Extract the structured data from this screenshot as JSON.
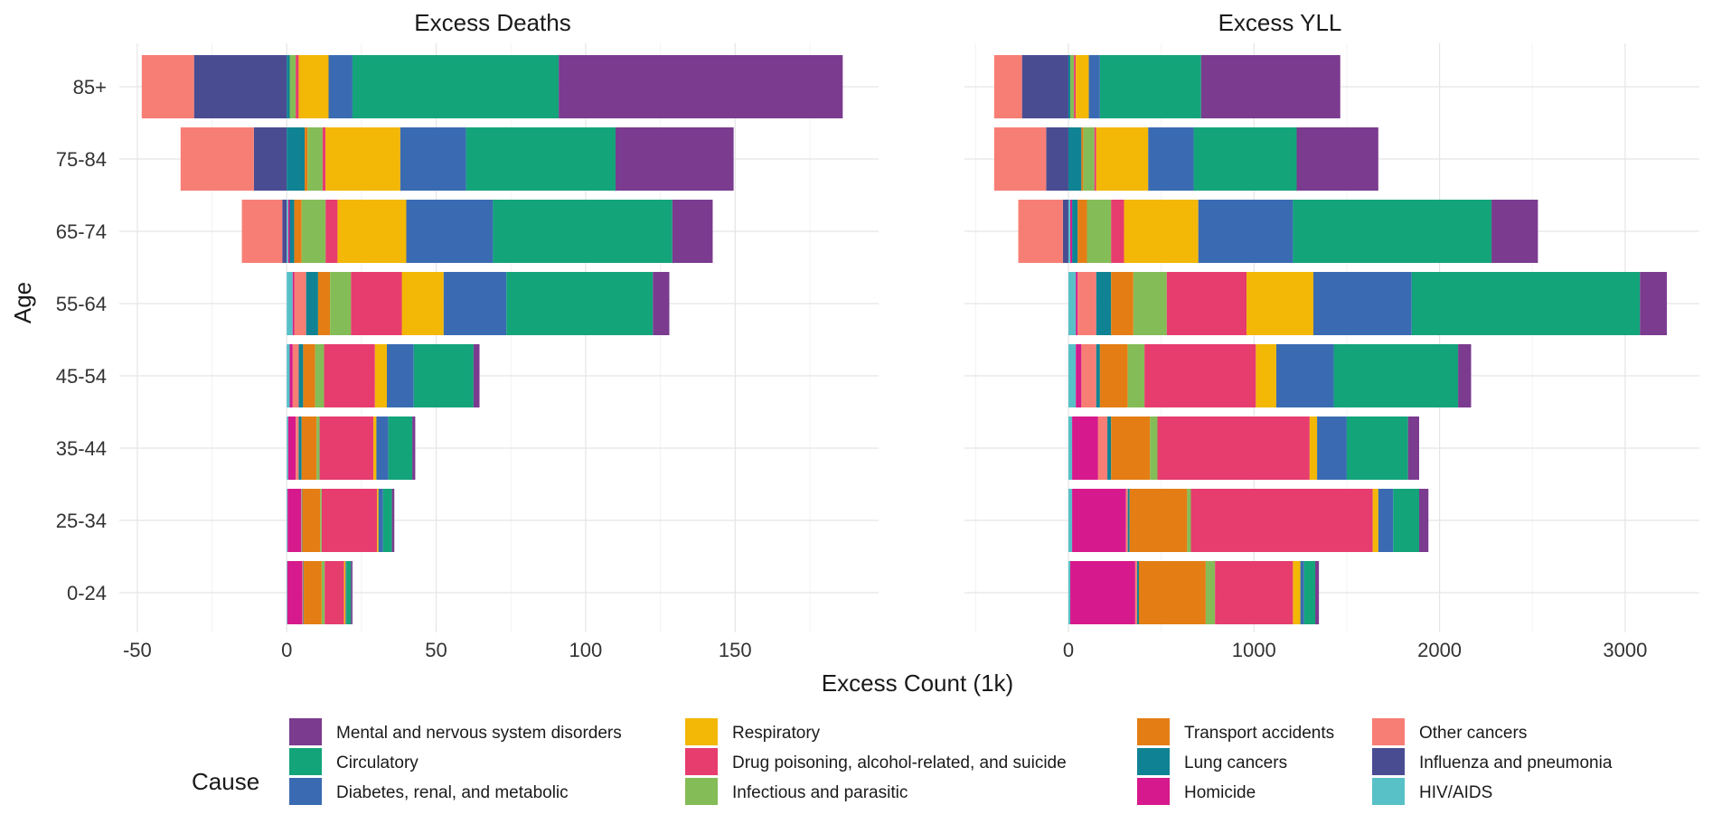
{
  "chart_data": {
    "type": "bar",
    "orientation": "horizontal",
    "stacked": true,
    "diverging": true,
    "ylabel": "Age",
    "xlabel": "Excess Count (1k)",
    "legend_title": "Cause",
    "legend_position": "bottom",
    "grid": true,
    "categories": [
      "85+",
      "75-84",
      "65-74",
      "55-64",
      "45-54",
      "35-44",
      "25-34",
      "0-24"
    ],
    "causes": [
      {
        "name": "Mental and nervous system disorders",
        "color": "#7b3b8f"
      },
      {
        "name": "Circulatory",
        "color": "#13a47a"
      },
      {
        "name": "Diabetes, renal, and metabolic",
        "color": "#3a6bb2"
      },
      {
        "name": "Respiratory",
        "color": "#f3b706"
      },
      {
        "name": "Drug poisoning, alcohol-related, and suicide",
        "color": "#e63c6e"
      },
      {
        "name": "Infectious and parasitic",
        "color": "#84bd57"
      },
      {
        "name": "Transport accidents",
        "color": "#e47e14"
      },
      {
        "name": "Lung cancers",
        "color": "#0f8394"
      },
      {
        "name": "Homicide",
        "color": "#d6198c"
      },
      {
        "name": "Other cancers",
        "color": "#f77e74"
      },
      {
        "name": "Influenza and pneumonia",
        "color": "#4a4c92"
      },
      {
        "name": "HIV/AIDS",
        "color": "#58c1c8"
      }
    ],
    "panels": [
      {
        "title": "Excess Deaths",
        "xlim": [
          -56,
          198
        ],
        "ticks": [
          -50,
          0,
          50,
          100,
          150
        ],
        "tick_labels": [
          "-50",
          "0",
          "50",
          "100",
          "150"
        ],
        "values": {
          "85+": {
            "Other cancers": -17.5,
            "Influenza and pneumonia": -31,
            "HIV/AIDS": 0,
            "Homicide": 0,
            "Lung cancers": 1,
            "Transport accidents": 0,
            "Infectious and parasitic": 2,
            "Drug poisoning, alcohol-related, and suicide": 1,
            "Respiratory": 10,
            "Diabetes, renal, and metabolic": 8,
            "Circulatory": 69,
            "Mental and nervous system disorders": 95
          },
          "75-84": {
            "Other cancers": -24.5,
            "Influenza and pneumonia": -11,
            "HIV/AIDS": 0,
            "Homicide": 0,
            "Lung cancers": 6,
            "Transport accidents": 1,
            "Infectious and parasitic": 5,
            "Drug poisoning, alcohol-related, and suicide": 1,
            "Respiratory": 25,
            "Diabetes, renal, and metabolic": 22,
            "Circulatory": 50,
            "Mental and nervous system disorders": 39.5
          },
          "65-74": {
            "Other cancers": -13.5,
            "Influenza and pneumonia": -1.5,
            "Lung cancers": 1.5,
            "HIV/AIDS": 0.5,
            "Homicide": 0.5,
            "Transport accidents": 2.5,
            "Infectious and parasitic": 8,
            "Drug poisoning, alcohol-related, and suicide": 4,
            "Respiratory": 23,
            "Diabetes, renal, and metabolic": 29,
            "Circulatory": 60,
            "Mental and nervous system disorders": 13.5
          },
          "55-64": {
            "HIV/AIDS": 2,
            "Homicide": 0.5,
            "Other cancers": 4,
            "Lung cancers": 4,
            "Transport accidents": 4,
            "Infectious and parasitic": 7,
            "Drug poisoning, alcohol-related, and suicide": 17,
            "Respiratory": 14,
            "Diabetes, renal, and metabolic": 21,
            "Circulatory": 49,
            "Mental and nervous system disorders": 5.5
          },
          "45-54": {
            "HIV/AIDS": 1,
            "Homicide": 1,
            "Other cancers": 2,
            "Lung cancers": 1.5,
            "Transport accidents": 4,
            "Infectious and parasitic": 3,
            "Drug poisoning, alcohol-related, and suicide": 17,
            "Respiratory": 4,
            "Diabetes, renal, and metabolic": 9,
            "Circulatory": 20,
            "Mental and nervous system disorders": 2
          },
          "35-44": {
            "HIV/AIDS": 0.5,
            "Homicide": 2.5,
            "Other cancers": 1,
            "Lung cancers": 1,
            "Transport accidents": 5,
            "Infectious and parasitic": 1,
            "Drug poisoning, alcohol-related, and suicide": 18,
            "Respiratory": 1,
            "Diabetes, renal, and metabolic": 4,
            "Circulatory": 8,
            "Mental and nervous system disorders": 1
          },
          "25-34": {
            "HIV/AIDS": 0.3,
            "Homicide": 4.5,
            "Other cancers": 0.2,
            "Lung cancers": 0.2,
            "Transport accidents": 6,
            "Infectious and parasitic": 0.5,
            "Drug poisoning, alcohol-related, and suicide": 18.5,
            "Respiratory": 0.5,
            "Diabetes, renal, and metabolic": 1.5,
            "Circulatory": 3,
            "Mental and nervous system disorders": 0.8
          },
          "0-24": {
            "HIV/AIDS": 0.2,
            "Homicide": 5,
            "Other cancers": 0.3,
            "Lung cancers": 0.2,
            "Transport accidents": 6,
            "Infectious and parasitic": 1,
            "Drug poisoning, alcohol-related, and suicide": 6.5,
            "Respiratory": 0.5,
            "Diabetes, renal, and metabolic": 0.3,
            "Circulatory": 1.5,
            "Mental and nervous system disorders": 0.5
          }
        }
      },
      {
        "title": "Excess YLL",
        "xlim": [
          -560,
          3400
        ],
        "ticks": [
          0,
          1000,
          2000,
          3000
        ],
        "tick_labels": [
          "0",
          "1000",
          "2000",
          "3000"
        ],
        "values": {
          "85+": {
            "Other cancers": -150,
            "Influenza and pneumonia": -250,
            "HIV/AIDS": 0,
            "Homicide": 0,
            "Lung cancers": 10,
            "Transport accidents": 0,
            "Infectious and parasitic": 20,
            "Drug poisoning, alcohol-related, and suicide": 10,
            "Respiratory": 70,
            "Diabetes, renal, and metabolic": 60,
            "Circulatory": 545,
            "Mental and nervous system disorders": 750
          },
          "75-84": {
            "Other cancers": -280,
            "Influenza and pneumonia": -120,
            "HIV/AIDS": 0,
            "Homicide": 0,
            "Lung cancers": 70,
            "Transport accidents": 10,
            "Infectious and parasitic": 60,
            "Drug poisoning, alcohol-related, and suicide": 10,
            "Respiratory": 280,
            "Diabetes, renal, and metabolic": 245,
            "Circulatory": 555,
            "Mental and nervous system disorders": 440
          },
          "65-74": {
            "Other cancers": -240,
            "Influenza and pneumonia": -30,
            "Lung cancers": 30,
            "HIV/AIDS": 10,
            "Homicide": 10,
            "Transport accidents": 50,
            "Infectious and parasitic": 130,
            "Drug poisoning, alcohol-related, and suicide": 70,
            "Respiratory": 400,
            "Diabetes, renal, and metabolic": 510,
            "Circulatory": 1070,
            "Mental and nervous system disorders": 250
          },
          "55-64": {
            "HIV/AIDS": 40,
            "Homicide": 10,
            "Other cancers": 100,
            "Lung cancers": 80,
            "Transport accidents": 120,
            "Infectious and parasitic": 180,
            "Drug poisoning, alcohol-related, and suicide": 430,
            "Respiratory": 360,
            "Diabetes, renal, and metabolic": 530,
            "Circulatory": 1230,
            "Mental and nervous system disorders": 145
          },
          "45-54": {
            "HIV/AIDS": 40,
            "Homicide": 30,
            "Other cancers": 80,
            "Lung cancers": 20,
            "Transport accidents": 150,
            "Infectious and parasitic": 90,
            "Drug poisoning, alcohol-related, and suicide": 600,
            "Respiratory": 110,
            "Diabetes, renal, and metabolic": 310,
            "Circulatory": 670,
            "Mental and nervous system disorders": 70
          },
          "35-44": {
            "HIV/AIDS": 20,
            "Homicide": 140,
            "Other cancers": 50,
            "Lung cancers": 20,
            "Transport accidents": 210,
            "Infectious and parasitic": 40,
            "Drug poisoning, alcohol-related, and suicide": 820,
            "Respiratory": 40,
            "Diabetes, renal, and metabolic": 160,
            "Circulatory": 330,
            "Mental and nervous system disorders": 60
          },
          "25-34": {
            "HIV/AIDS": 20,
            "Homicide": 290,
            "Other cancers": 10,
            "Lung cancers": 10,
            "Transport accidents": 310,
            "Infectious and parasitic": 20,
            "Drug poisoning, alcohol-related, and suicide": 980,
            "Respiratory": 30,
            "Diabetes, renal, and metabolic": 80,
            "Circulatory": 140,
            "Mental and nervous system disorders": 50
          },
          "0-24": {
            "HIV/AIDS": 10,
            "Homicide": 350,
            "Other cancers": 10,
            "Lung cancers": 10,
            "Transport accidents": 360,
            "Infectious and parasitic": 50,
            "Drug poisoning, alcohol-related, and suicide": 420,
            "Respiratory": 40,
            "Diabetes, renal, and metabolic": 20,
            "Circulatory": 60,
            "Mental and nervous system disorders": 20
          }
        }
      }
    ]
  }
}
